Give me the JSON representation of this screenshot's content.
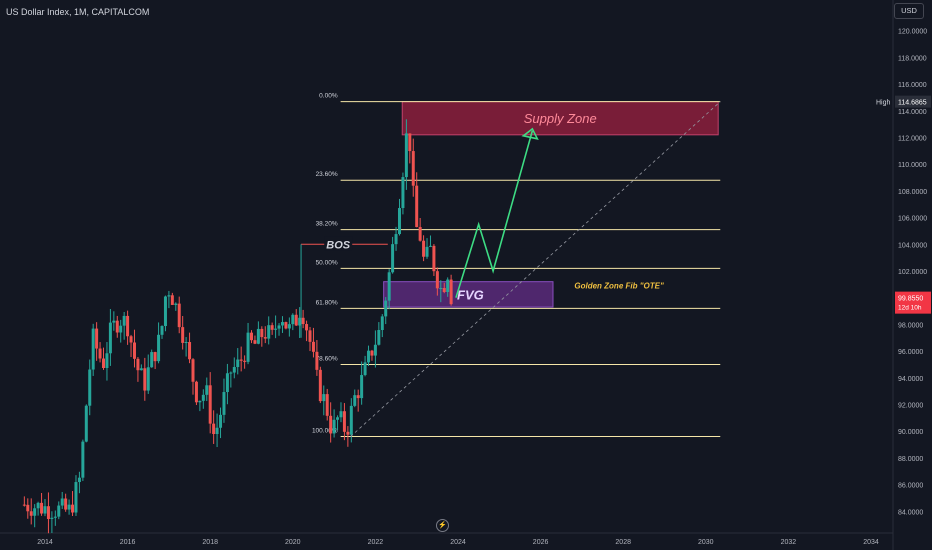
{
  "header": {
    "title": "US Dollar Index, 1M, CAPITALCOM",
    "currency_button": "USD"
  },
  "colors": {
    "background": "#131722",
    "up": "#26a69a",
    "down": "#ef5350",
    "fib_line": "#f5e6a8",
    "supply": "#8c1e3c",
    "fvg": "#5a2a7a",
    "arrow": "#3ddc84",
    "price_tag": "#f23645"
  },
  "icons": {
    "bottom": "lightning-icon"
  },
  "chart_data": {
    "type": "candlestick",
    "symbol": "US Dollar Index",
    "interval": "1M",
    "source": "CAPITALCOM",
    "ylim": [
      82.5,
      122
    ],
    "xlim": [
      2013.5,
      2034.5
    ],
    "y_ticks": [
      "84.0000",
      "86.0000",
      "88.0000",
      "90.0000",
      "92.0000",
      "94.0000",
      "96.0000",
      "98.0000",
      "100.0000",
      "102.0000",
      "104.0000",
      "106.0000",
      "108.0000",
      "110.0000",
      "112.0000",
      "114.0000",
      "116.0000",
      "118.0000",
      "120.0000"
    ],
    "x_ticks": [
      "2014",
      "2016",
      "2018",
      "2020",
      "2022",
      "2024",
      "2026",
      "2028",
      "2030",
      "2032",
      "2034"
    ],
    "price_series": [
      [
        2013.5,
        84.5
      ],
      [
        2014.6,
        84.0
      ],
      [
        2014.85,
        86.5
      ],
      [
        2015.0,
        92.0
      ],
      [
        2015.15,
        97.0
      ],
      [
        2015.4,
        95.0
      ],
      [
        2015.6,
        97.5
      ],
      [
        2015.8,
        98.5
      ],
      [
        2016.0,
        98.0
      ],
      [
        2016.2,
        95.0
      ],
      [
        2016.4,
        93.5
      ],
      [
        2016.6,
        95.5
      ],
      [
        2016.8,
        97.0
      ],
      [
        2016.95,
        101.0
      ],
      [
        2017.1,
        100.0
      ],
      [
        2017.3,
        98.0
      ],
      [
        2017.5,
        95.0
      ],
      [
        2017.7,
        92.5
      ],
      [
        2017.9,
        93.0
      ],
      [
        2018.1,
        89.5
      ],
      [
        2018.3,
        92.0
      ],
      [
        2018.5,
        94.5
      ],
      [
        2018.7,
        95.0
      ],
      [
        2018.9,
        96.5
      ],
      [
        2019.1,
        96.5
      ],
      [
        2019.3,
        97.5
      ],
      [
        2019.5,
        97.0
      ],
      [
        2019.7,
        99.0
      ],
      [
        2019.9,
        97.5
      ],
      [
        2020.1,
        98.5
      ],
      [
        2020.2,
        99.5
      ],
      [
        2020.4,
        97.0
      ],
      [
        2020.6,
        93.5
      ],
      [
        2020.8,
        92.0
      ],
      [
        2020.95,
        90.0
      ],
      [
        2021.1,
        91.0
      ],
      [
        2021.3,
        90.0
      ],
      [
        2021.5,
        92.5
      ],
      [
        2021.7,
        94.0
      ],
      [
        2021.9,
        96.0
      ],
      [
        2022.1,
        97.5
      ],
      [
        2022.3,
        101.0
      ],
      [
        2022.45,
        104.5
      ],
      [
        2022.6,
        108.0
      ],
      [
        2022.75,
        112.0
      ],
      [
        2022.85,
        111.5
      ],
      [
        2022.95,
        105.5
      ],
      [
        2023.1,
        104.5
      ],
      [
        2023.2,
        102.0
      ],
      [
        2023.3,
        104.0
      ],
      [
        2023.45,
        102.0
      ],
      [
        2023.6,
        100.5
      ],
      [
        2023.75,
        102.0
      ],
      [
        2023.85,
        99.86
      ]
    ],
    "annotations": {
      "high_label": "High",
      "high_value": "114.6865",
      "last_value": "99.8550",
      "countdown": "12d 10h",
      "supply_zone": "Supply Zone",
      "fvg": "FVG",
      "bos": "BOS",
      "golden_zone": "Golden Zone Fib \"OTE\""
    },
    "fib_levels": [
      {
        "label": "0.00%",
        "price": 114.6865
      },
      {
        "label": "23.60%",
        "price": 108.8
      },
      {
        "label": "38.20%",
        "price": 105.1
      },
      {
        "label": "50.00%",
        "price": 102.2
      },
      {
        "label": "61.80%",
        "price": 99.2
      },
      {
        "label": "78.60%",
        "price": 95.0
      },
      {
        "label": "100.00%",
        "price": 89.6
      }
    ],
    "supply_zone_range": {
      "x": [
        2022.65,
        2030.3
      ],
      "y": [
        112.2,
        114.6865
      ]
    },
    "fvg_range": {
      "x": [
        2022.2,
        2026.3
      ],
      "y": [
        99.3,
        101.2
      ]
    },
    "bos_level": 104.0,
    "projection_path": [
      [
        2023.95,
        100.0
      ],
      [
        2024.5,
        105.5
      ],
      [
        2024.85,
        102.0
      ],
      [
        2025.8,
        112.5
      ]
    ],
    "trend_line": [
      [
        2021.4,
        89.6
      ],
      [
        2030.35,
        114.6865
      ]
    ]
  }
}
